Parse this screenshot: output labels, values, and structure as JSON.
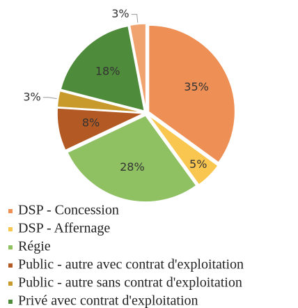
{
  "chart_data": {
    "type": "pie",
    "categories": [
      "DSP - Concession",
      "DSP - Affernage",
      "Régie",
      "Public - autre avec contrat d'exploitation",
      "Public - autre sans contrat d'exploitation",
      "Privé avec contrat d'exploitation",
      null
    ],
    "values": [
      35,
      5,
      28,
      8,
      3,
      18,
      3
    ],
    "value_labels": [
      "35%",
      "5%",
      "28%",
      "8%",
      "3%",
      "18%",
      "3%"
    ],
    "colors": [
      "#ee8f55",
      "#f9c750",
      "#8fc163",
      "#b35a24",
      "#c89a2c",
      "#4e8b3b",
      "#f0a36e"
    ],
    "legend": "bottom"
  }
}
